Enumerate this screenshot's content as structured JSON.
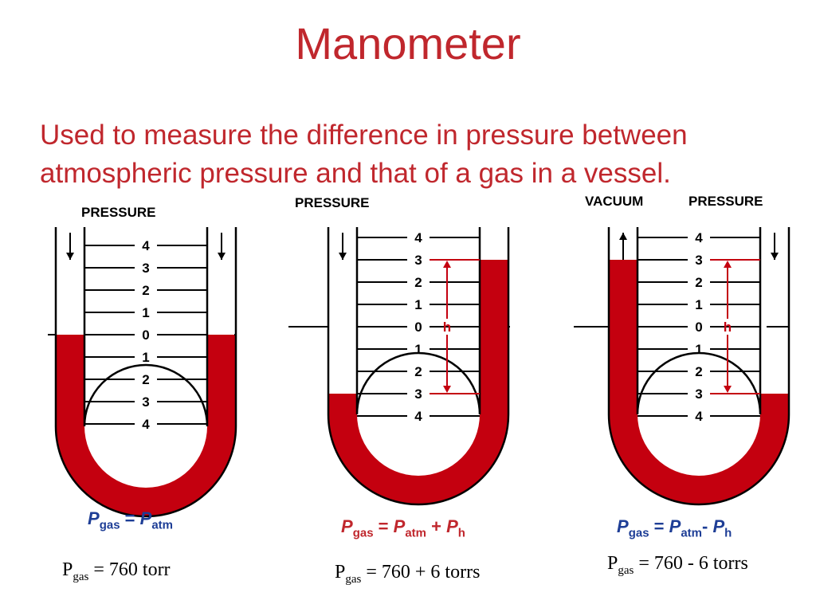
{
  "title": "Manometer",
  "description": "Used to measure the difference in pressure between atmospheric pressure and that of a gas in a vessel.",
  "colors": {
    "heading": "#C0272D",
    "fluid": "#C4000F",
    "formula_blue": "#1E3E96",
    "formula_red": "#C0272D"
  },
  "scale_labels": [
    "4",
    "3",
    "2",
    "1",
    "0",
    "1",
    "2",
    "3",
    "4"
  ],
  "height_marker": "h",
  "manometers": [
    {
      "top_labels": {
        "left": "PRESSURE",
        "right": ""
      },
      "arrows": [
        "down",
        "down"
      ],
      "fluid_level_left": 0,
      "fluid_level_right": 0,
      "formula": {
        "lhs": "P",
        "lhs_sub": "gas",
        "eq": " = ",
        "t1": "P",
        "t1_sub": "atm",
        "op": "",
        "t2": "",
        "t2_sub": ""
      },
      "equation": {
        "p": "P",
        "sub": "gas",
        "rest": " = 760 torr"
      }
    },
    {
      "top_labels": {
        "left": "PRESSURE",
        "right": ""
      },
      "arrows": [
        "down"
      ],
      "fluid_level_left": -3,
      "fluid_level_right": 3,
      "formula": {
        "lhs": "P",
        "lhs_sub": "gas",
        "eq": " = ",
        "t1": "P",
        "t1_sub": "atm",
        "op": " + ",
        "t2": "P",
        "t2_sub": "h"
      },
      "equation": {
        "p": "P",
        "sub": "gas",
        "rest": " = 760 + 6 torrs"
      }
    },
    {
      "top_labels": {
        "left": "VACUUM",
        "right": "PRESSURE"
      },
      "arrows": [
        "up",
        "down"
      ],
      "fluid_level_left": 3,
      "fluid_level_right": -3,
      "formula": {
        "lhs": "P",
        "lhs_sub": "gas",
        "eq": " = ",
        "t1": "P",
        "t1_sub": "atm",
        "op": "- ",
        "t2": "P",
        "t2_sub": "h"
      },
      "equation": {
        "p": "P",
        "sub": "gas",
        "rest": " = 760 - 6 torrs"
      }
    }
  ]
}
